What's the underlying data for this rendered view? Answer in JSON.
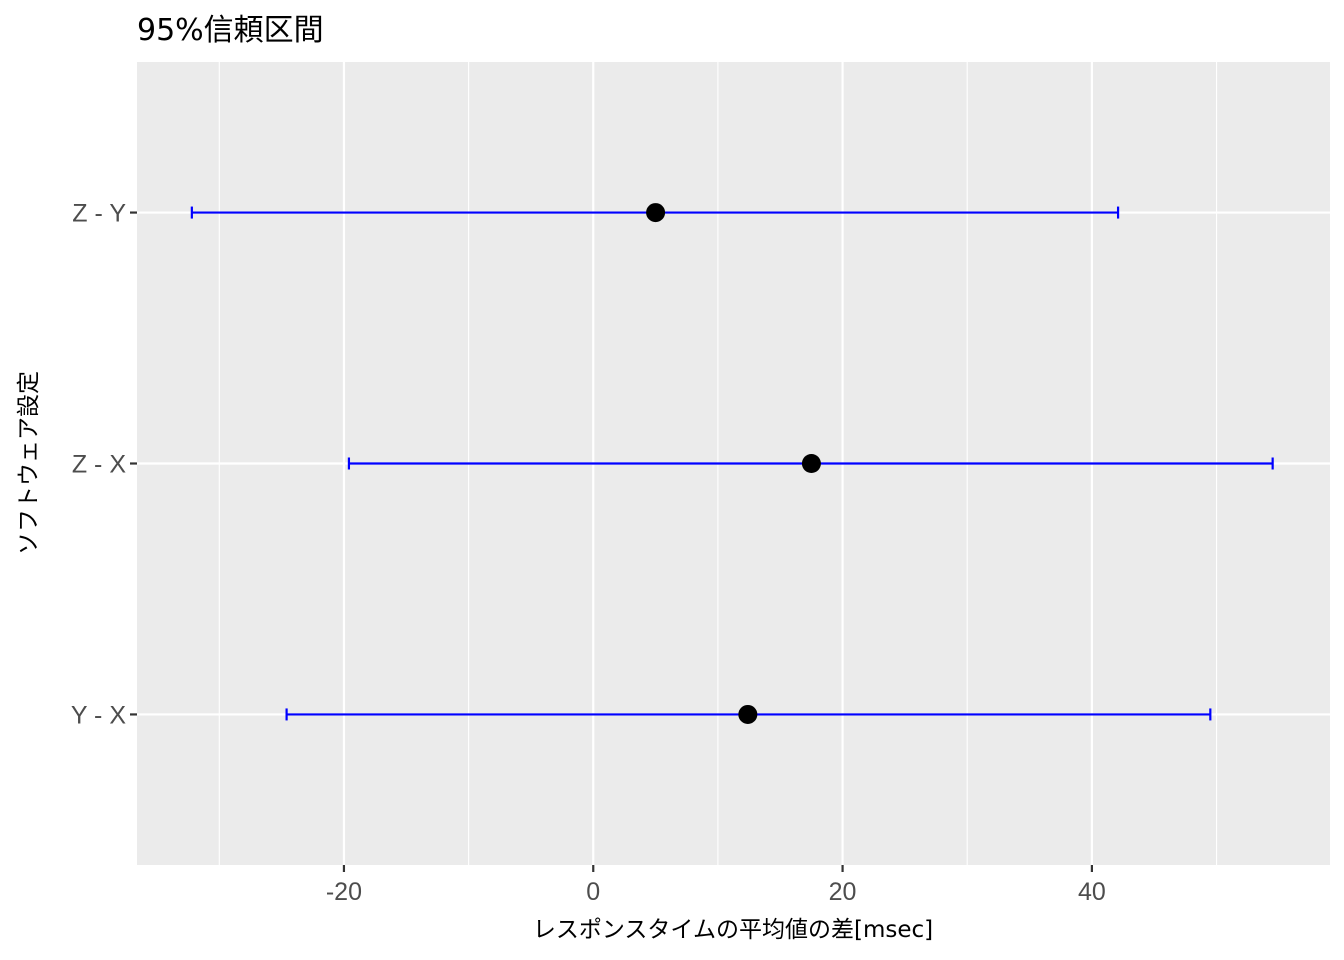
{
  "chart_data": {
    "type": "errorbar",
    "title": "95%信頼区間",
    "xlabel": "レスポンスタイムの平均値の差[msec]",
    "ylabel": "ソフトウェア設定",
    "xlim": [
      -36.6,
      59.1
    ],
    "x_ticks": [
      -20,
      0,
      20,
      40
    ],
    "x_tick_labels": [
      "-20",
      "0",
      "20",
      "40"
    ],
    "x_minor_ticks": [
      -30,
      -10,
      10,
      30,
      50
    ],
    "categories": [
      "Y - X",
      "Z - X",
      "Z - Y"
    ],
    "estimates": [
      12.4,
      17.5,
      5.0
    ],
    "lower": [
      -24.6,
      -19.6,
      -32.2
    ],
    "upper": [
      49.5,
      54.5,
      42.1
    ],
    "grid": true,
    "colors": {
      "panel": "#ebebeb",
      "grid": "#ffffff",
      "interval": "#0000ff",
      "point": "#000000",
      "tick": "#333333"
    }
  }
}
